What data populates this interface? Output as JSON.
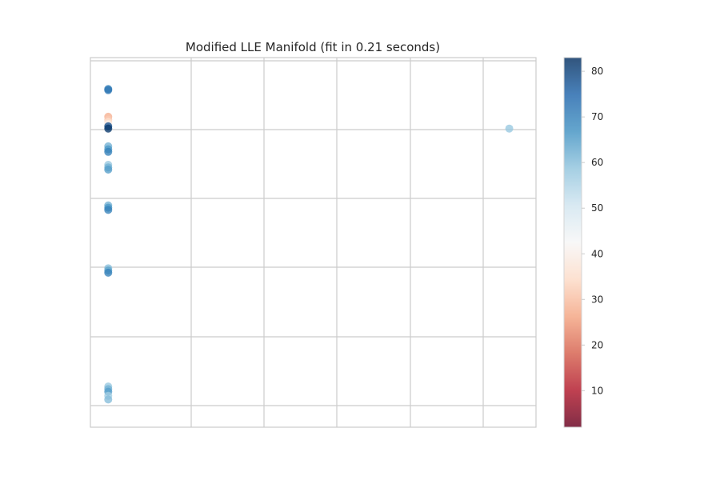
{
  "chart_data": {
    "type": "scatter",
    "title": "Modified LLE Manifold (fit in 0.21 seconds)",
    "xlabel": "",
    "ylabel": "",
    "x_ticks_shown": false,
    "y_ticks_shown": false,
    "grid": true,
    "colormap": "RdBu",
    "colorbar": {
      "range": [
        2,
        83
      ],
      "ticks": [
        10,
        20,
        30,
        40,
        50,
        60,
        70,
        80
      ],
      "tick_labels": [
        "10",
        "20",
        "30",
        "40",
        "50",
        "60",
        "70",
        "80"
      ]
    },
    "points": [
      {
        "x": 0.04,
        "y": 0.915,
        "c": 70
      },
      {
        "x": 0.04,
        "y": 0.912,
        "c": 72
      },
      {
        "x": 0.04,
        "y": 0.84,
        "c": 28
      },
      {
        "x": 0.04,
        "y": 0.832,
        "c": 32
      },
      {
        "x": 0.04,
        "y": 0.826,
        "c": 36
      },
      {
        "x": 0.04,
        "y": 0.82,
        "c": 40
      },
      {
        "x": 0.04,
        "y": 0.814,
        "c": 78
      },
      {
        "x": 0.04,
        "y": 0.808,
        "c": 82
      },
      {
        "x": 0.04,
        "y": 0.76,
        "c": 62
      },
      {
        "x": 0.04,
        "y": 0.752,
        "c": 66
      },
      {
        "x": 0.04,
        "y": 0.745,
        "c": 70
      },
      {
        "x": 0.04,
        "y": 0.71,
        "c": 58
      },
      {
        "x": 0.04,
        "y": 0.703,
        "c": 62
      },
      {
        "x": 0.04,
        "y": 0.697,
        "c": 65
      },
      {
        "x": 0.04,
        "y": 0.6,
        "c": 62
      },
      {
        "x": 0.04,
        "y": 0.594,
        "c": 66
      },
      {
        "x": 0.04,
        "y": 0.588,
        "c": 70
      },
      {
        "x": 0.04,
        "y": 0.43,
        "c": 60
      },
      {
        "x": 0.04,
        "y": 0.424,
        "c": 64
      },
      {
        "x": 0.04,
        "y": 0.418,
        "c": 70
      },
      {
        "x": 0.04,
        "y": 0.11,
        "c": 58
      },
      {
        "x": 0.04,
        "y": 0.103,
        "c": 62
      },
      {
        "x": 0.04,
        "y": 0.096,
        "c": 65
      },
      {
        "x": 0.04,
        "y": 0.085,
        "c": 57
      },
      {
        "x": 0.04,
        "y": 0.075,
        "c": 60
      },
      {
        "x": 0.94,
        "y": 0.808,
        "c": 58
      }
    ]
  }
}
